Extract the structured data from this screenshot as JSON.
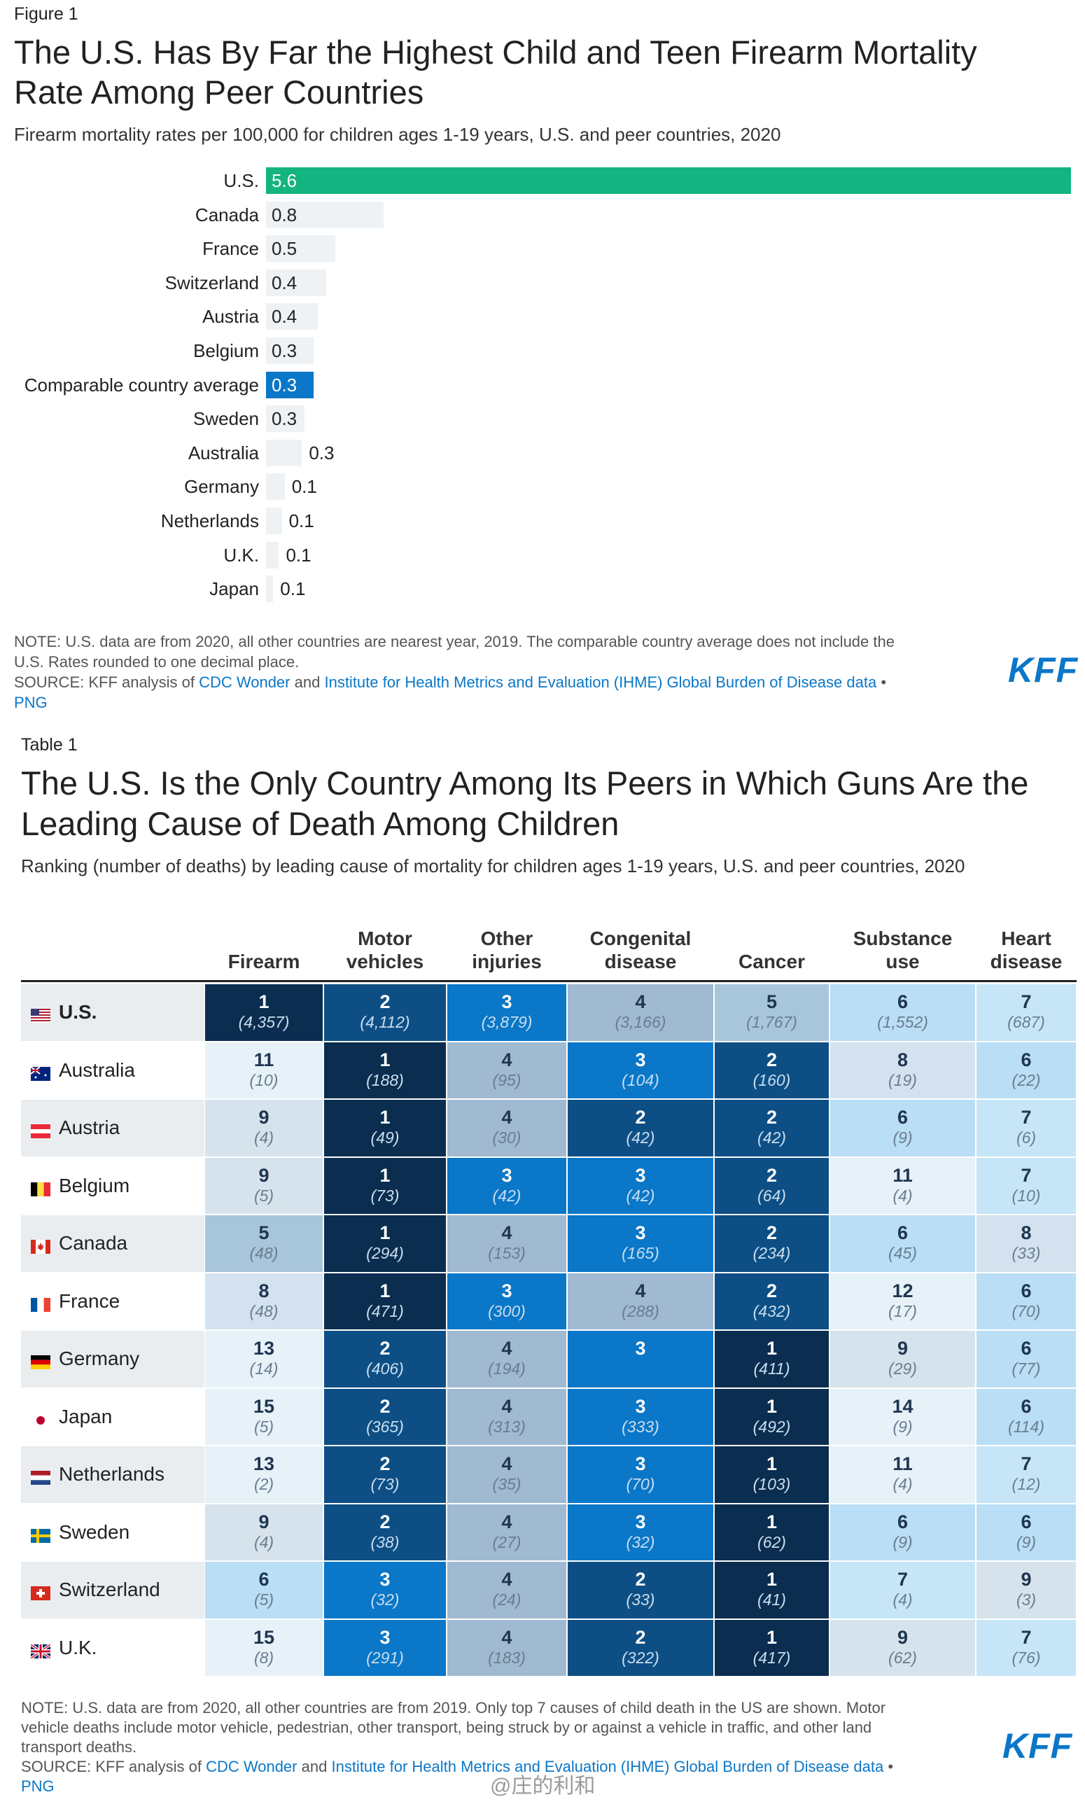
{
  "figure": {
    "label": "Figure 1",
    "title_line1": "The U.S. Has By Far the Highest Child and Teen Firearm Mortality",
    "title_line2": "Rate Among Peer Countries",
    "subtitle": "Firearm mortality rates per 100,000 for children ages 1-19 years, U.S. and peer countries, 2020",
    "note_line1": "NOTE: U.S. data are from 2020, all other countries are nearest year, 2019. The comparable country average does not include the",
    "note_line2": "U.S. Rates rounded to one decimal place.",
    "source_prefix": "SOURCE: KFF analysis of",
    "source_link1": "CDC Wonder",
    "source_and": "and",
    "source_link2": "Institute for Health Metrics and Evaluation (IHME) Global Burden of Disease data",
    "source_bullet": "•",
    "png": "PNG",
    "logo": "KFF"
  },
  "chart_data": [
    {
      "type": "bar",
      "orientation": "horizontal",
      "title": "The U.S. Has By Far the Highest Child and Teen Firearm Mortality Rate Among Peer Countries",
      "subtitle": "Firearm mortality rates per 100,000 for children ages 1-19 years, U.S. and peer countries, 2020",
      "categories": [
        "U.S.",
        "Canada",
        "France",
        "Switzerland",
        "Austria",
        "Belgium",
        "Comparable country average",
        "Sweden",
        "Australia",
        "Germany",
        "Netherlands",
        "U.K.",
        "Japan"
      ],
      "values": [
        5.6,
        0.8,
        0.5,
        0.4,
        0.4,
        0.3,
        0.3,
        0.3,
        0.3,
        0.1,
        0.1,
        0.1,
        0.1
      ],
      "value_labels": [
        "5.6",
        "0.8",
        "0.5",
        "0.4",
        "0.4",
        "0.3",
        "0.3",
        "0.3",
        "0.3",
        "0.1",
        "0.1",
        "0.1",
        "0.1"
      ],
      "bar_widths_by_value_rank": [
        5.6,
        0.82,
        0.48,
        0.42,
        0.36,
        0.33,
        0.33,
        0.27,
        0.25,
        0.13,
        0.11,
        0.09,
        0.05
      ],
      "highlight": {
        "U.S.": "#14b480",
        "Comparable country average": "#0a77c8"
      },
      "xlim": [
        0,
        5.6
      ],
      "grid": false
    },
    {
      "type": "table",
      "title": "The U.S. Is the Only Country Among Its Peers in Which Guns Are the Leading Cause of Death Among Children",
      "columns": [
        "Firearm",
        "Motor vehicles",
        "Other injuries",
        "Congenital disease",
        "Cancer",
        "Substance use",
        "Heart disease"
      ],
      "rows": [
        {
          "country": "U.S.",
          "cells": [
            [
              1,
              "(4,357)"
            ],
            [
              2,
              "(4,112)"
            ],
            [
              3,
              "(3,879)"
            ],
            [
              4,
              "(3,166)"
            ],
            [
              5,
              "(1,767)"
            ],
            [
              6,
              "(1,552)"
            ],
            [
              7,
              "(687)"
            ]
          ]
        },
        {
          "country": "Australia",
          "cells": [
            [
              11,
              "(10)"
            ],
            [
              1,
              "(188)"
            ],
            [
              4,
              "(95)"
            ],
            [
              3,
              "(104)"
            ],
            [
              2,
              "(160)"
            ],
            [
              8,
              "(19)"
            ],
            [
              6,
              "(22)"
            ]
          ]
        },
        {
          "country": "Austria",
          "cells": [
            [
              9,
              "(4)"
            ],
            [
              1,
              "(49)"
            ],
            [
              4,
              "(30)"
            ],
            [
              2,
              "(42)"
            ],
            [
              2,
              "(42)"
            ],
            [
              6,
              "(9)"
            ],
            [
              7,
              "(6)"
            ]
          ]
        },
        {
          "country": "Belgium",
          "cells": [
            [
              9,
              "(5)"
            ],
            [
              1,
              "(73)"
            ],
            [
              3,
              "(42)"
            ],
            [
              3,
              "(42)"
            ],
            [
              2,
              "(64)"
            ],
            [
              11,
              "(4)"
            ],
            [
              7,
              "(10)"
            ]
          ]
        },
        {
          "country": "Canada",
          "cells": [
            [
              5,
              "(48)"
            ],
            [
              1,
              "(294)"
            ],
            [
              4,
              "(153)"
            ],
            [
              3,
              "(165)"
            ],
            [
              2,
              "(234)"
            ],
            [
              6,
              "(45)"
            ],
            [
              8,
              "(33)"
            ]
          ]
        },
        {
          "country": "France",
          "cells": [
            [
              8,
              "(48)"
            ],
            [
              1,
              "(471)"
            ],
            [
              3,
              "(300)"
            ],
            [
              4,
              "(288)"
            ],
            [
              2,
              "(432)"
            ],
            [
              12,
              "(17)"
            ],
            [
              6,
              "(70)"
            ]
          ]
        },
        {
          "country": "Germany",
          "cells": [
            [
              13,
              "(14)"
            ],
            [
              2,
              "(406)"
            ],
            [
              4,
              "(194)"
            ],
            [
              3,
              ""
            ],
            [
              1,
              "(411)"
            ],
            [
              9,
              "(29)"
            ],
            [
              6,
              "(77)"
            ]
          ]
        },
        {
          "country": "Japan",
          "cells": [
            [
              15,
              "(5)"
            ],
            [
              2,
              "(365)"
            ],
            [
              4,
              "(313)"
            ],
            [
              3,
              "(333)"
            ],
            [
              1,
              "(492)"
            ],
            [
              14,
              "(9)"
            ],
            [
              6,
              "(114)"
            ]
          ]
        },
        {
          "country": "Netherlands",
          "cells": [
            [
              13,
              "(2)"
            ],
            [
              2,
              "(73)"
            ],
            [
              4,
              "(35)"
            ],
            [
              3,
              "(70)"
            ],
            [
              1,
              "(103)"
            ],
            [
              11,
              "(4)"
            ],
            [
              7,
              "(12)"
            ]
          ]
        },
        {
          "country": "Sweden",
          "cells": [
            [
              9,
              "(4)"
            ],
            [
              2,
              "(38)"
            ],
            [
              4,
              "(27)"
            ],
            [
              3,
              "(32)"
            ],
            [
              1,
              "(62)"
            ],
            [
              6,
              "(9)"
            ],
            [
              6,
              "(9)"
            ]
          ]
        },
        {
          "country": "Switzerland",
          "cells": [
            [
              6,
              "(5)"
            ],
            [
              3,
              "(32)"
            ],
            [
              4,
              "(24)"
            ],
            [
              2,
              "(33)"
            ],
            [
              1,
              "(41)"
            ],
            [
              7,
              "(4)"
            ],
            [
              9,
              "(3)"
            ]
          ]
        },
        {
          "country": "U.K.",
          "cells": [
            [
              15,
              "(8)"
            ],
            [
              3,
              "(291)"
            ],
            [
              4,
              "(183)"
            ],
            [
              2,
              "(322)"
            ],
            [
              1,
              "(417)"
            ],
            [
              9,
              "(62)"
            ],
            [
              7,
              "(76)"
            ]
          ]
        }
      ]
    }
  ],
  "table": {
    "label": "Table 1",
    "title_line1": "The U.S. Is the Only Country Among Its Peers in Which Guns Are the",
    "title_line2": "Leading Cause of Death Among Children",
    "subtitle": "Ranking (number of deaths) by leading cause of mortality for children ages 1-19 years, U.S. and peer countries, 2020",
    "headers": [
      {
        "line1": "",
        "line2": "Firearm"
      },
      {
        "line1": "Motor",
        "line2": "vehicles"
      },
      {
        "line1": "Other",
        "line2": "injuries"
      },
      {
        "line1": "Congenital",
        "line2": "disease"
      },
      {
        "line1": "",
        "line2": "Cancer"
      },
      {
        "line1": "Substance",
        "line2": "use"
      },
      {
        "line1": "Heart",
        "line2": "disease"
      }
    ],
    "rank_colors": {
      "1": "#0b2d4f",
      "2": "#0d4f85",
      "3": "#0a77c8",
      "4": "#9fbad1",
      "5": "#a7c6dc",
      "6": "#b9def5",
      "7": "#c6e6f8",
      "8": "#d3e2ee",
      "9": "#d7e3ec",
      "11": "#e6f1f8",
      "12": "#e6f1f8",
      "13": "#e6f1f8",
      "14": "#e6f1f8",
      "15": "#e6f1f8"
    },
    "note_line1": "NOTE: U.S. data are from 2020, all other countries are from 2019. Only top 7 causes of child death in the US are shown. Motor",
    "note_line2": "vehicle deaths include motor vehicle, pedestrian, other transport, being struck by or against a vehicle in traffic, and other land",
    "note_line3": "transport deaths.",
    "source_prefix": "SOURCE: KFF analysis of",
    "source_link1": "CDC Wonder",
    "source_and": "and",
    "source_link2": "Institute for Health Metrics and Evaluation (IHME) Global Burden of Disease data",
    "source_bullet": "•",
    "png": "PNG",
    "logo": "KFF",
    "watermark": "@庄的利和"
  }
}
